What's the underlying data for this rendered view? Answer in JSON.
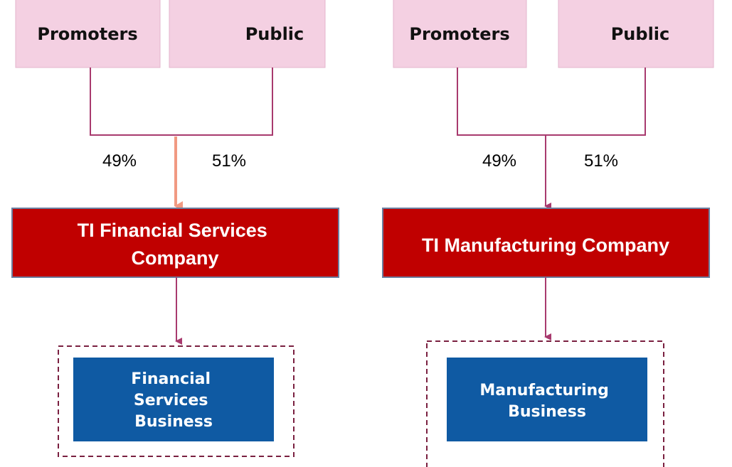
{
  "groups": [
    {
      "owners": [
        "Promoters",
        "Public"
      ],
      "shares": [
        "49%",
        "51%"
      ],
      "company": [
        "TI Financial Services",
        "Company"
      ],
      "business": [
        "Financial",
        "Services",
        "Business"
      ]
    },
    {
      "owners": [
        "Promoters",
        "Public"
      ],
      "shares": [
        "49%",
        "51%"
      ],
      "company": [
        "TI Manufacturing Company"
      ],
      "business": [
        "Manufacturing",
        "Business"
      ]
    }
  ]
}
